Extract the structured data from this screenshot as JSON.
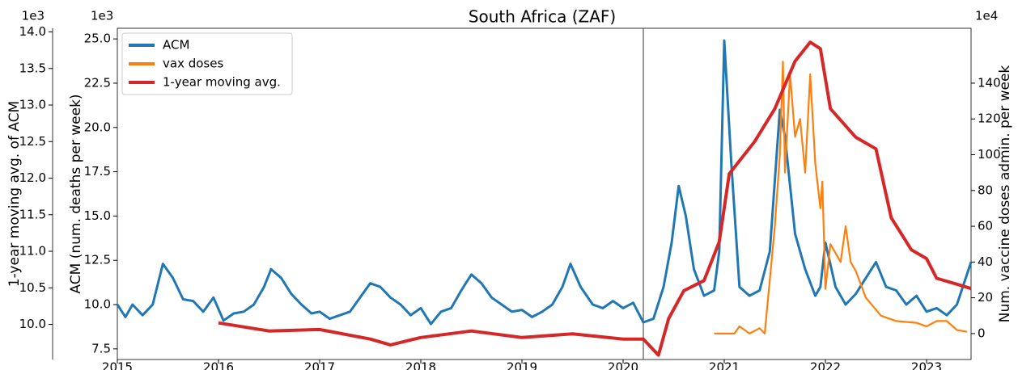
{
  "chart_data": {
    "type": "line",
    "title": "South Africa (ZAF)",
    "ylabel": "ACM (num. deaths per week)",
    "y2label": "Num. vaccine doses admin. per week",
    "y3label": "1-year moving avg. of ACM",
    "y_scale": "1e3",
    "y2_scale": "1e4",
    "y3_scale": "1e3",
    "xlim": [
      2015,
      2023.44
    ],
    "xticks": [
      2015,
      2016,
      2017,
      2018,
      2019,
      2020,
      2021,
      2022,
      2023
    ],
    "ylim": [
      6.9,
      25.6
    ],
    "yticks": [
      7.5,
      {
        "value": 10,
        "label": "10.0"
      },
      12.5,
      {
        "value": 15,
        "label": "15.0"
      },
      17.5,
      {
        "value": 20,
        "label": "20.0"
      },
      22.5,
      {
        "value": 25,
        "label": "25.0"
      }
    ],
    "y2lim": [
      -14.5,
      170.7
    ],
    "y2ticks": [
      0,
      20,
      40,
      60,
      80,
      100,
      120,
      140
    ],
    "y3lim": [
      9.52,
      14.05
    ],
    "y3ticks": [
      {
        "value": 10,
        "label": "10.0"
      },
      10.5,
      {
        "value": 11,
        "label": "11.0"
      },
      11.5,
      {
        "value": 12,
        "label": "12.0"
      },
      12.5,
      {
        "value": 13,
        "label": "13.0"
      },
      13.5,
      {
        "value": 14,
        "label": "14.0"
      }
    ],
    "vline": 2020.2,
    "legend": "upper left",
    "series": [
      {
        "name": "ACM",
        "color": "#1f77b4",
        "axis": "y",
        "x": [
          2015.0,
          2015.08,
          2015.15,
          2015.25,
          2015.35,
          2015.45,
          2015.55,
          2015.65,
          2015.75,
          2015.85,
          2015.95,
          2016.05,
          2016.15,
          2016.25,
          2016.35,
          2016.45,
          2016.52,
          2016.62,
          2016.72,
          2016.82,
          2016.92,
          2017.0,
          2017.1,
          2017.2,
          2017.3,
          2017.4,
          2017.5,
          2017.6,
          2017.7,
          2017.8,
          2017.9,
          2018.0,
          2018.1,
          2018.2,
          2018.3,
          2018.4,
          2018.5,
          2018.6,
          2018.7,
          2018.8,
          2018.9,
          2019.0,
          2019.1,
          2019.2,
          2019.3,
          2019.4,
          2019.48,
          2019.58,
          2019.7,
          2019.8,
          2019.9,
          2020.0,
          2020.1,
          2020.2,
          2020.3,
          2020.4,
          2020.48,
          2020.55,
          2020.62,
          2020.7,
          2020.8,
          2020.9,
          2020.95,
          2021.0,
          2021.07,
          2021.15,
          2021.25,
          2021.35,
          2021.45,
          2021.55,
          2021.6,
          2021.7,
          2021.8,
          2021.9,
          2021.95,
          2022.0,
          2022.1,
          2022.2,
          2022.3,
          2022.4,
          2022.5,
          2022.6,
          2022.7,
          2022.8,
          2022.9,
          2023.0,
          2023.1,
          2023.2,
          2023.3,
          2023.44
        ],
        "values": [
          10.0,
          9.3,
          10.0,
          9.4,
          10.0,
          12.3,
          11.5,
          10.3,
          10.2,
          9.6,
          10.4,
          9.1,
          9.5,
          9.6,
          10.0,
          11.0,
          12.0,
          11.5,
          10.6,
          10.0,
          9.5,
          9.6,
          9.2,
          9.4,
          9.6,
          10.4,
          11.2,
          11.0,
          10.4,
          10.0,
          9.4,
          9.8,
          8.9,
          9.6,
          9.8,
          10.8,
          11.7,
          11.2,
          10.4,
          10.0,
          9.6,
          9.7,
          9.3,
          9.6,
          10.0,
          11.0,
          12.3,
          11.0,
          10.0,
          9.8,
          10.2,
          9.8,
          10.1,
          9.0,
          9.2,
          11.0,
          13.5,
          16.7,
          15.0,
          12.0,
          10.5,
          10.8,
          13.0,
          24.9,
          18.0,
          11.0,
          10.5,
          10.8,
          13.0,
          21.0,
          19.5,
          14.0,
          12.0,
          10.5,
          11.0,
          13.5,
          11.0,
          10.0,
          10.6,
          11.5,
          12.4,
          11.0,
          10.8,
          10.0,
          10.5,
          9.6,
          9.8,
          9.4,
          10.0,
          12.4
        ]
      },
      {
        "name": "vax doses",
        "color": "#ff7f0e",
        "axis": "y2",
        "x": [
          2020.9,
          2021.1,
          2021.15,
          2021.25,
          2021.35,
          2021.4,
          2021.45,
          2021.5,
          2021.55,
          2021.58,
          2021.6,
          2021.65,
          2021.7,
          2021.75,
          2021.8,
          2021.85,
          2021.9,
          2021.95,
          2021.97,
          2022.0,
          2022.05,
          2022.15,
          2022.2,
          2022.25,
          2022.3,
          2022.4,
          2022.55,
          2022.7,
          2022.9,
          2023.0,
          2023.1,
          2023.2,
          2023.3,
          2023.4
        ],
        "values": [
          0,
          0,
          4,
          0,
          3,
          0,
          30,
          60,
          100,
          152,
          90,
          145,
          110,
          120,
          90,
          145,
          95,
          70,
          85,
          25,
          50,
          40,
          60,
          40,
          35,
          20,
          10,
          7,
          6,
          4,
          7,
          7,
          2,
          1
        ]
      },
      {
        "name": "1-year moving avg.",
        "color": "#d62728",
        "axis": "y3",
        "x": [
          2016.0,
          2016.5,
          2017.0,
          2017.5,
          2017.7,
          2018.0,
          2018.5,
          2019.0,
          2019.5,
          2020.0,
          2020.2,
          2020.35,
          2020.45,
          2020.6,
          2020.8,
          2020.95,
          2021.05,
          2021.3,
          2021.5,
          2021.7,
          2021.85,
          2021.95,
          2022.05,
          2022.3,
          2022.5,
          2022.65,
          2022.85,
          2023.0,
          2023.1,
          2023.3,
          2023.44
        ],
        "values": [
          10.02,
          9.91,
          9.93,
          9.8,
          9.72,
          9.82,
          9.91,
          9.82,
          9.87,
          9.8,
          9.8,
          9.58,
          10.08,
          10.46,
          10.6,
          11.13,
          12.06,
          12.5,
          12.95,
          13.6,
          13.86,
          13.77,
          12.95,
          12.56,
          12.4,
          11.46,
          11.02,
          10.9,
          10.63,
          10.55,
          10.49
        ]
      }
    ]
  }
}
